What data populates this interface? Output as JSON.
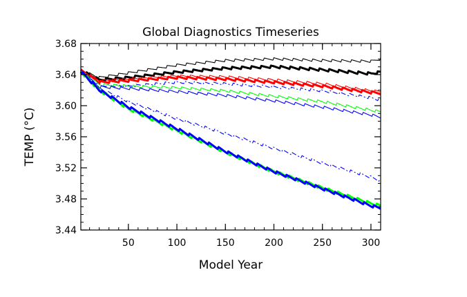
{
  "chart_data": {
    "type": "line",
    "title": "Global Diagnostics Timeseries",
    "xlabel": "Model Year",
    "ylabel": "TEMP (°C)",
    "xlim": [
      1,
      310
    ],
    "ylim": [
      3.44,
      3.68
    ],
    "xticks": [
      50,
      100,
      150,
      200,
      250,
      300
    ],
    "yticks": [
      3.44,
      3.48,
      3.52,
      3.56,
      3.6,
      3.64,
      3.68
    ],
    "ytick_labels": [
      "3.44",
      "3.48",
      "3.52",
      "3.56",
      "3.60",
      "3.64",
      "3.68"
    ],
    "xtick_labels": [
      "50",
      "100",
      "150",
      "200",
      "250",
      "300"
    ],
    "series": [
      {
        "name": "black-thin",
        "color": "#000000",
        "weight": "thin",
        "dash": "solid",
        "x": [
          1,
          20,
          50,
          100,
          150,
          200,
          250,
          300,
          310
        ],
        "values": [
          3.645,
          3.636,
          3.642,
          3.652,
          3.658,
          3.66,
          3.658,
          3.657,
          3.66
        ]
      },
      {
        "name": "black-thick",
        "color": "#000000",
        "weight": "thick",
        "dash": "solid",
        "x": [
          1,
          20,
          50,
          100,
          150,
          200,
          250,
          300,
          310
        ],
        "values": [
          3.645,
          3.633,
          3.636,
          3.643,
          3.648,
          3.65,
          3.646,
          3.641,
          3.643
        ]
      },
      {
        "name": "red-thin",
        "color": "#ff0000",
        "weight": "thin",
        "dash": "solid",
        "x": [
          1,
          20,
          50,
          100,
          150,
          200,
          250,
          300,
          310
        ],
        "values": [
          3.645,
          3.632,
          3.634,
          3.638,
          3.637,
          3.633,
          3.628,
          3.619,
          3.618
        ]
      },
      {
        "name": "red-thick",
        "color": "#ff0000",
        "weight": "thick",
        "dash": "solid",
        "x": [
          1,
          20,
          50,
          100,
          150,
          200,
          250,
          300,
          310
        ],
        "values": [
          3.645,
          3.63,
          3.632,
          3.636,
          3.634,
          3.63,
          3.625,
          3.617,
          3.616
        ]
      },
      {
        "name": "blue-dashdot-upper",
        "color": "#0000ff",
        "weight": "thin",
        "dash": "dashdot",
        "x": [
          1,
          20,
          50,
          100,
          150,
          200,
          250,
          300,
          310
        ],
        "values": [
          3.644,
          3.626,
          3.625,
          3.63,
          3.628,
          3.624,
          3.619,
          3.61,
          3.607
        ]
      },
      {
        "name": "green-thin",
        "color": "#00ff00",
        "weight": "thin",
        "dash": "solid",
        "x": [
          1,
          20,
          50,
          100,
          150,
          200,
          250,
          300,
          310
        ],
        "values": [
          3.644,
          3.627,
          3.625,
          3.623,
          3.619,
          3.612,
          3.605,
          3.594,
          3.592
        ]
      },
      {
        "name": "blue-thin",
        "color": "#0000ff",
        "weight": "thin",
        "dash": "solid",
        "x": [
          1,
          20,
          50,
          100,
          150,
          200,
          250,
          300,
          310
        ],
        "values": [
          3.644,
          3.624,
          3.622,
          3.618,
          3.613,
          3.606,
          3.598,
          3.588,
          3.585
        ]
      },
      {
        "name": "blue-dashdot-lower",
        "color": "#0000ff",
        "weight": "thin",
        "dash": "dashdot",
        "x": [
          1,
          20,
          50,
          100,
          150,
          200,
          250,
          300,
          310
        ],
        "values": [
          3.644,
          3.622,
          3.605,
          3.583,
          3.564,
          3.545,
          3.526,
          3.508,
          3.503
        ]
      },
      {
        "name": "green-thick",
        "color": "#00ff00",
        "weight": "thick",
        "dash": "solid",
        "x": [
          1,
          20,
          50,
          100,
          150,
          200,
          250,
          300,
          310
        ],
        "values": [
          3.644,
          3.62,
          3.596,
          3.568,
          3.54,
          3.515,
          3.494,
          3.474,
          3.471
        ]
      },
      {
        "name": "blue-thick",
        "color": "#0000ff",
        "weight": "thick",
        "dash": "solid",
        "x": [
          1,
          20,
          50,
          100,
          150,
          200,
          250,
          300,
          310
        ],
        "values": [
          3.644,
          3.62,
          3.598,
          3.57,
          3.541,
          3.515,
          3.493,
          3.471,
          3.468
        ]
      }
    ]
  }
}
